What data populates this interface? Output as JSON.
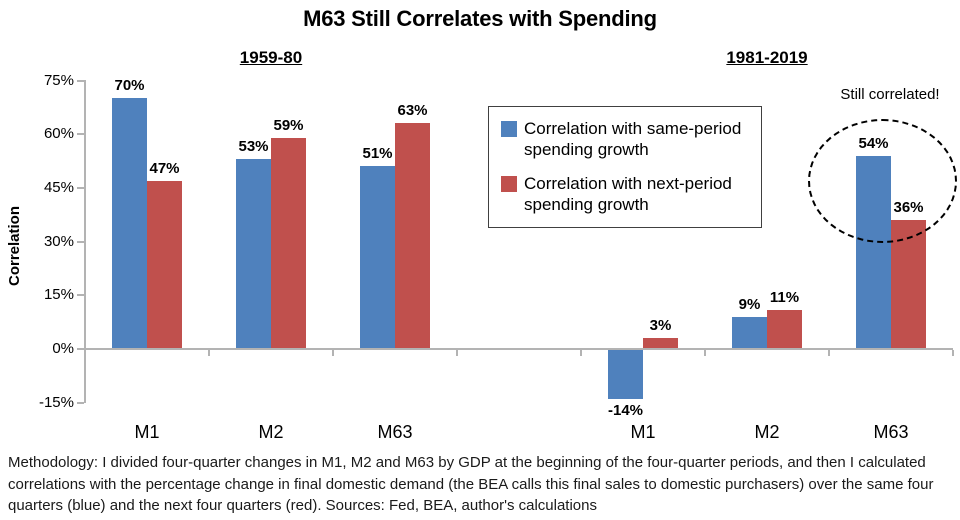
{
  "chart_data": {
    "type": "bar",
    "title": "M63 Still Correlates with Spending",
    "ylabel": "Correlation",
    "xlabel": "",
    "ylim": [
      -15,
      75
    ],
    "ytick_values": [
      75,
      60,
      45,
      30,
      15,
      0,
      -15
    ],
    "ytick_labels": [
      "75%",
      "60%",
      "45%",
      "30%",
      "15%",
      "0%",
      "-15%"
    ],
    "grid": false,
    "legend_position": "upper-center",
    "annotation": "Still correlated!",
    "groups": [
      {
        "label": "1959-80",
        "categories": [
          "M1",
          "M2",
          "M63"
        ],
        "series": [
          {
            "name": "Correlation with same-period spending growth",
            "color": "#4F81BD",
            "values": [
              70,
              53,
              51
            ],
            "labels": [
              "70%",
              "53%",
              "51%"
            ]
          },
          {
            "name": "Correlation with next-period spending growth",
            "color": "#C0504D",
            "values": [
              47,
              59,
              63
            ],
            "labels": [
              "47%",
              "59%",
              "63%"
            ]
          }
        ]
      },
      {
        "label": "1981-2019",
        "categories": [
          "M1",
          "M2",
          "M63"
        ],
        "series": [
          {
            "name": "Correlation with same-period spending growth",
            "color": "#4F81BD",
            "values": [
              -14,
              9,
              54
            ],
            "labels": [
              "-14%",
              "9%",
              "54%"
            ]
          },
          {
            "name": "Correlation with next-period spending growth",
            "color": "#C0504D",
            "values": [
              3,
              11,
              36
            ],
            "labels": [
              "3%",
              "11%",
              "36%"
            ]
          }
        ]
      }
    ],
    "legend": [
      {
        "label": "Correlation with same-period spending growth",
        "color": "#4F81BD"
      },
      {
        "label": "Correlation with next-period spending growth",
        "color": "#C0504D"
      }
    ]
  },
  "colors": {
    "same_period": "#4F81BD",
    "next_period": "#C0504D",
    "axis": "#B3B3B3"
  },
  "footer": "Methodology: I divided four-quarter changes in M1, M2 and M63 by GDP at the beginning of the four-quarter periods, and then I calculated correlations with the percentage change in final domestic demand (the BEA calls this final sales to domestic purchasers) over the same four quarters (blue) and the next four quarters (red). Sources: Fed, BEA, author's calculations"
}
